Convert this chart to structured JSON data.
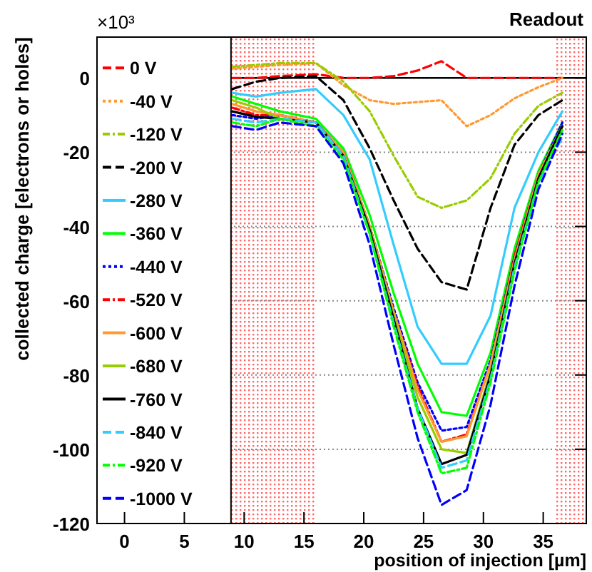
{
  "chart_data": {
    "type": "line",
    "xlabel": "position of injection [µm]",
    "ylabel": "collected charge [electrons or holes]",
    "annotations": [
      "×10³"
    ],
    "xlim": [
      -2.3,
      38.6
    ],
    "xticks": [
      0,
      5,
      10,
      15,
      20,
      25,
      30,
      35
    ],
    "ylim": [
      -120,
      11
    ],
    "yticks": [
      -120,
      -100,
      -80,
      -60,
      -40,
      -20,
      0
    ],
    "grid": "y",
    "legend": "left",
    "ref_lines": [
      {
        "axis": "y",
        "value": 0,
        "color": "#000000"
      }
    ],
    "bands": [
      {
        "axis": "x",
        "from": 8.9,
        "to": 16,
        "color": "#ff6666"
      },
      {
        "axis": "x",
        "from": 36.1,
        "to": 38.6,
        "label": "Readout",
        "color": "#ff6666"
      }
    ],
    "x": [
      9,
      11,
      13,
      16,
      18.3,
      20.5,
      22.5,
      24.5,
      26.5,
      28.6,
      30.6,
      32.6,
      34.6,
      36.6
    ],
    "series": [
      {
        "name": "0 V",
        "color": "#ff0000",
        "line_style": "dashed",
        "values": [
          0,
          0,
          0.5,
          1,
          0,
          0,
          0.5,
          2,
          4.5,
          0,
          0,
          0,
          0,
          0
        ]
      },
      {
        "name": "-40 V",
        "color": "#ff9933",
        "line_style": "dotted",
        "values": [
          2.5,
          3,
          3.5,
          4,
          -2,
          -6,
          -7,
          -6.5,
          -6,
          -13,
          -10,
          -5.5,
          -2.5,
          0
        ]
      },
      {
        "name": "-120 V",
        "color": "#99cc00",
        "line_style": "dashdot",
        "values": [
          3,
          3.5,
          4,
          4,
          -1,
          -9,
          -21,
          -32,
          -35,
          -33,
          -27,
          -15,
          -7.5,
          -4
        ]
      },
      {
        "name": "-200 V",
        "color": "#000000",
        "line_style": "dashed",
        "values": [
          -3,
          -1,
          0,
          0.5,
          -6,
          -19,
          -33,
          -46,
          -55,
          -57,
          -35,
          -18,
          -10,
          -6
        ]
      },
      {
        "name": "-280 V",
        "color": "#33ccff",
        "line_style": "solid",
        "values": [
          -4,
          -5,
          -4,
          -3,
          -10,
          -22,
          -45,
          -67,
          -77,
          -77,
          -64,
          -35,
          -20,
          -9
        ]
      },
      {
        "name": "-360 V",
        "color": "#00ff00",
        "line_style": "solid",
        "values": [
          -5,
          -7,
          -9,
          -11,
          -19,
          -37,
          -58,
          -77,
          -90,
          -91,
          -74,
          -46,
          -25,
          -12
        ]
      },
      {
        "name": "-440 V",
        "color": "#0000ff",
        "line_style": "dotted",
        "values": [
          -10,
          -11,
          -10,
          -12,
          -20,
          -40,
          -62,
          -82,
          -95,
          -94,
          -76,
          -48,
          -26,
          -12
        ]
      },
      {
        "name": "-520 V",
        "color": "#ff0000",
        "line_style": "dashdot",
        "values": [
          -8,
          -10,
          -10,
          -12,
          -20,
          -40,
          -63,
          -83,
          -98,
          -96,
          -77,
          -48,
          -26,
          -13
        ]
      },
      {
        "name": "-600 V",
        "color": "#ff9933",
        "line_style": "solid",
        "values": [
          -7,
          -9,
          -10,
          -12,
          -20,
          -40,
          -63,
          -84,
          -98,
          -96.5,
          -77,
          -49,
          -26,
          -13
        ]
      },
      {
        "name": "-680 V",
        "color": "#99cc00",
        "line_style": "solid",
        "values": [
          -6,
          -8,
          -11,
          -12,
          -21,
          -41,
          -64,
          -86,
          -100,
          -101,
          -79,
          -50,
          -27,
          -13
        ]
      },
      {
        "name": "-760 V",
        "color": "#000000",
        "line_style": "solid",
        "values": [
          -9,
          -10.5,
          -11,
          -12,
          -21,
          -41,
          -65,
          -89,
          -104,
          -101.5,
          -80,
          -50,
          -27,
          -13
        ]
      },
      {
        "name": "-840 V",
        "color": "#33ccff",
        "line_style": "dashed",
        "values": [
          -11,
          -12,
          -11,
          -12,
          -21,
          -42,
          -66,
          -89,
          -105,
          -103,
          -81,
          -51,
          -28,
          -16
        ]
      },
      {
        "name": "-920 V",
        "color": "#00ff00",
        "line_style": "dashdot",
        "values": [
          -12,
          -13,
          -11,
          -13,
          -22,
          -42,
          -67,
          -90,
          -106.5,
          -105,
          -82,
          -52,
          -28,
          -14
        ]
      },
      {
        "name": "-1000 V",
        "color": "#0000ff",
        "line_style": "dashed",
        "values": [
          -13,
          -14,
          -12,
          -13,
          -23,
          -45,
          -72,
          -97,
          -115,
          -111,
          -88,
          -56,
          -30,
          -15
        ]
      }
    ]
  }
}
